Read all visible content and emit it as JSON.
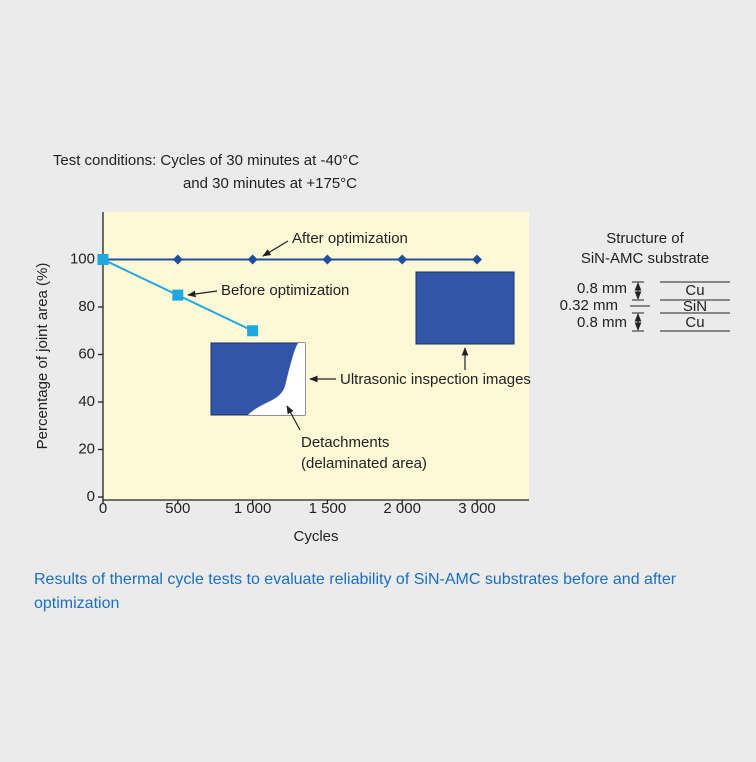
{
  "chart_data": {
    "type": "line",
    "title": "Results of thermal cycle tests to evaluate reliability of SiN-AMC substrates before and after optimization",
    "subtitle": [
      "Test conditions: Cycles of 30 minutes at -40°C",
      "and 30 minutes at +175°C"
    ],
    "x_label": "Cycles",
    "y_label": "Percentage of joint area (%)",
    "categories": [
      "0",
      "500",
      "1 000",
      "1 500",
      "2 000",
      "3 000"
    ],
    "series": [
      {
        "name": "After optimization",
        "color": "#1d4f9e",
        "marker": "diamond",
        "values": [
          100,
          100,
          100,
          100,
          100,
          100
        ]
      },
      {
        "name": "Before optimization",
        "color": "#1ea7e1",
        "marker": "square",
        "values": [
          100,
          85,
          70,
          null,
          null,
          null
        ]
      }
    ],
    "ylim": [
      0,
      120
    ],
    "yticks": [
      0,
      20,
      40,
      60,
      80,
      100
    ],
    "grid": false,
    "annotations": [
      "After optimization",
      "Before optimization",
      "Ultrasonic inspection images",
      "Detachments",
      "(delaminated area)"
    ],
    "structure": {
      "title": [
        "Structure of",
        "SiN-AMC substrate"
      ],
      "thickness": [
        "0.8 mm",
        "0.32 mm",
        "0.8 mm"
      ],
      "layers": [
        "Cu",
        "SiN",
        "Cu"
      ]
    }
  }
}
